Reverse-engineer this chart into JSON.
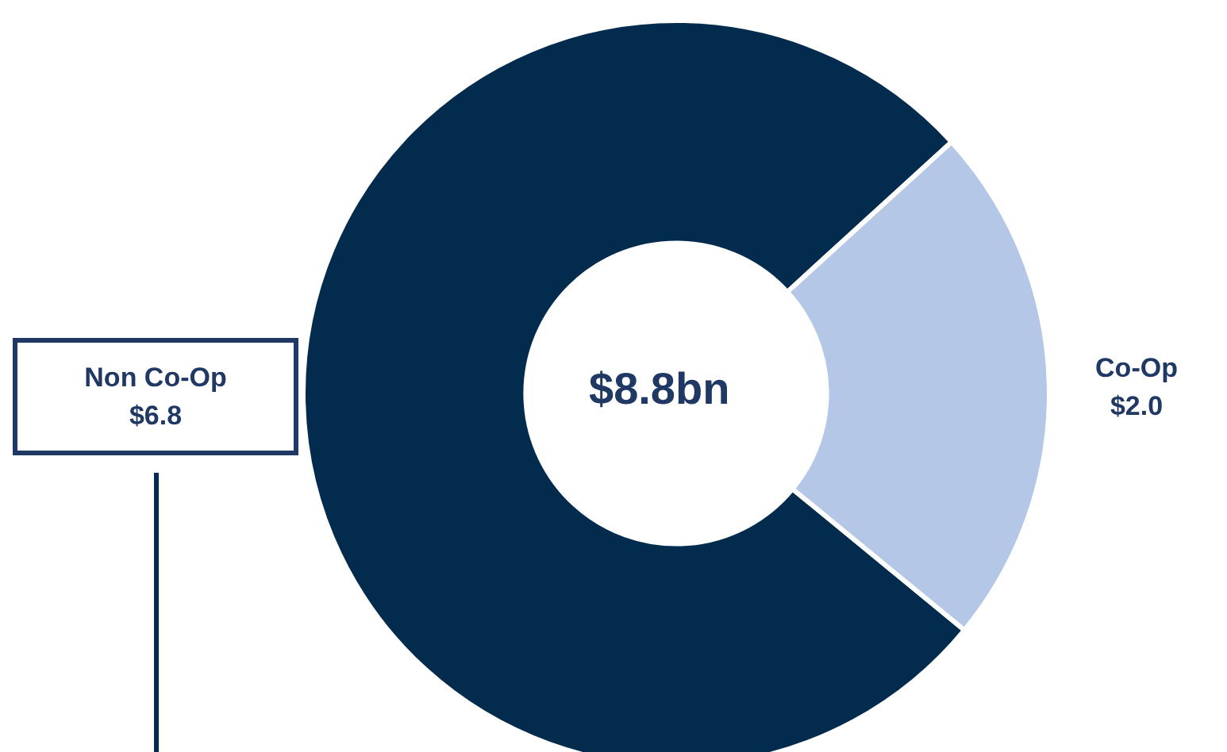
{
  "chart_data": {
    "type": "donut",
    "categories": [
      "Non Co-Op",
      "Co-Op"
    ],
    "values": [
      6.8,
      2.0
    ],
    "value_labels": [
      "$6.8",
      "$2.0"
    ],
    "colors": [
      "#022b4e",
      "#b4c7e7"
    ],
    "annotations": [
      "$8.8bn"
    ],
    "legend": false
  }
}
